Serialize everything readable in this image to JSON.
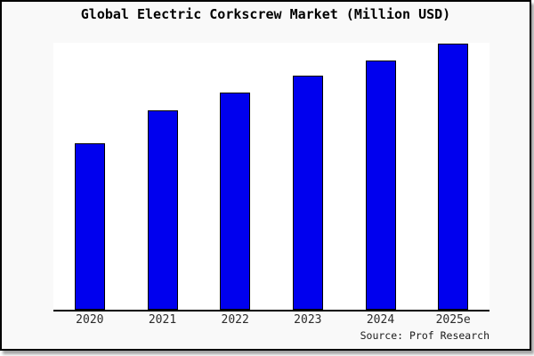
{
  "figure": {
    "outer_background": "#ffffff",
    "frame_background": "#f9f9f9",
    "frame_border_color": "#000000",
    "plot_background": "#ffffff",
    "axis_line_color": "#000000"
  },
  "chart_data": {
    "type": "bar",
    "title": "Global Electric Corkscrew Market (Million USD)",
    "categories": [
      "2020",
      "2021",
      "2022",
      "2023",
      "2024",
      "2025e"
    ],
    "values_pct_of_max": [
      62.7,
      75.0,
      81.5,
      87.8,
      93.8,
      100.0
    ],
    "xlabel": "",
    "ylabel": "",
    "y_axis_labels_shown": false,
    "grid": false,
    "legend": false,
    "bar_color": "#0000ee",
    "bar_edge_color": "#000000"
  },
  "source": {
    "text": "Source: Prof Research"
  }
}
